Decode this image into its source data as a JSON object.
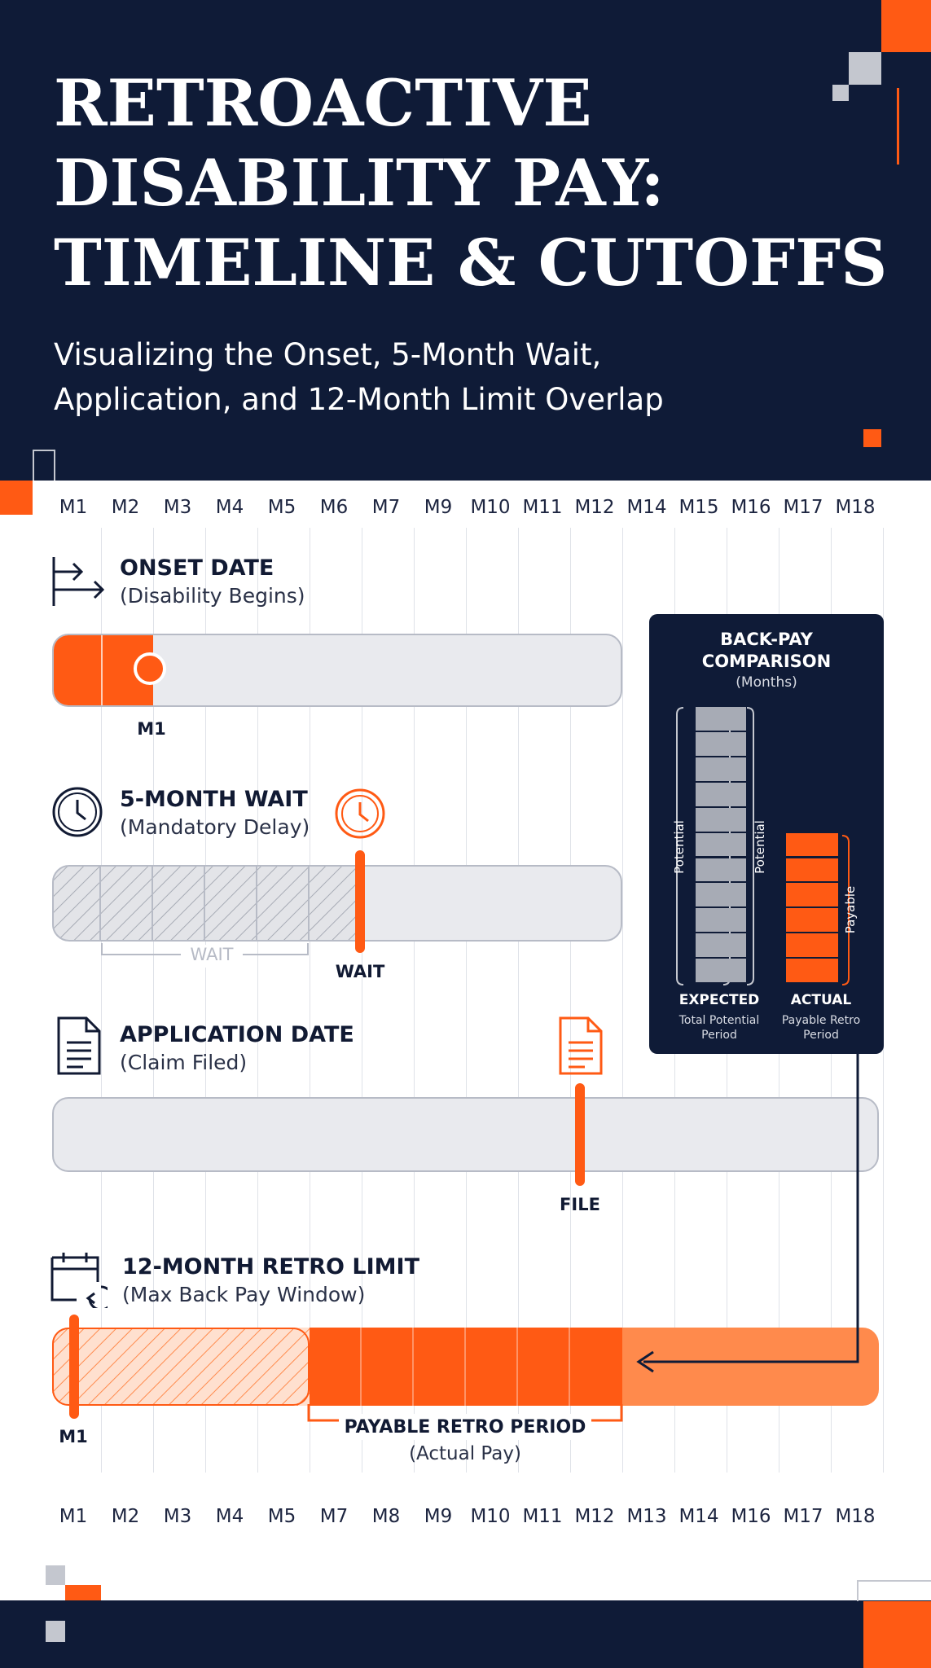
{
  "header": {
    "title_lines": [
      "RETROACTIVE",
      "DISABILITY PAY:",
      "TIMELINE & CUTOFFS"
    ],
    "subtitle_lines": [
      "Visualizing the Onset, 5-Month Wait,",
      "Application, and 12-Month Limit Overlap"
    ]
  },
  "axis_top": [
    "M1",
    "M2",
    "M3",
    "M4",
    "M5",
    "M6",
    "M7",
    "M9",
    "M10",
    "M11",
    "M12",
    "M14",
    "M15",
    "M16",
    "M17",
    "M18"
  ],
  "axis_bottom": [
    "M1",
    "M2",
    "M3",
    "M4",
    "M5",
    "M7",
    "M8",
    "M9",
    "M10",
    "M11",
    "M12",
    "M13",
    "M14",
    "M16",
    "M17",
    "M18"
  ],
  "sections": {
    "onset": {
      "title": "ONSET DATE",
      "subtitle": "(Disability Begins)",
      "marker": "M1"
    },
    "wait": {
      "title": "5-MONTH WAIT",
      "subtitle": "(Mandatory Delay)",
      "bracket_label": "WAIT",
      "marker": "WAIT"
    },
    "application": {
      "title": "APPLICATION DATE",
      "subtitle": "(Claim Filed)",
      "marker": "FILE"
    },
    "retro": {
      "title": "12-MONTH RETRO LIMIT",
      "subtitle": "(Max Back Pay Window)",
      "marker": "M1",
      "payable_title": "PAYABLE RETRO PERIOD",
      "payable_sub": "(Actual Pay)"
    }
  },
  "panel": {
    "title_lines": [
      "BACK-PAY",
      "COMPARISON"
    ],
    "units": "(Months)",
    "expected": {
      "label": "EXPECTED",
      "sub_lines": [
        "Total Potential",
        "Period"
      ],
      "side_label": "Potential",
      "value": 11
    },
    "actual": {
      "label": "ACTUAL",
      "sub_lines": [
        "Payable Retro",
        "Period"
      ],
      "side_label": "Payable",
      "value": 6
    },
    "scale_max": 11
  },
  "colors": {
    "navy": "#0f1b37",
    "orange": "#ff5a14",
    "light_orange": "#ff8a4c",
    "track": "#e9eaee",
    "gray_seg": "#a7abb5"
  },
  "icons": {
    "onset": "arrow-right-icon",
    "wait": "clock-icon",
    "application": "document-icon",
    "retro": "calendar-icon"
  }
}
